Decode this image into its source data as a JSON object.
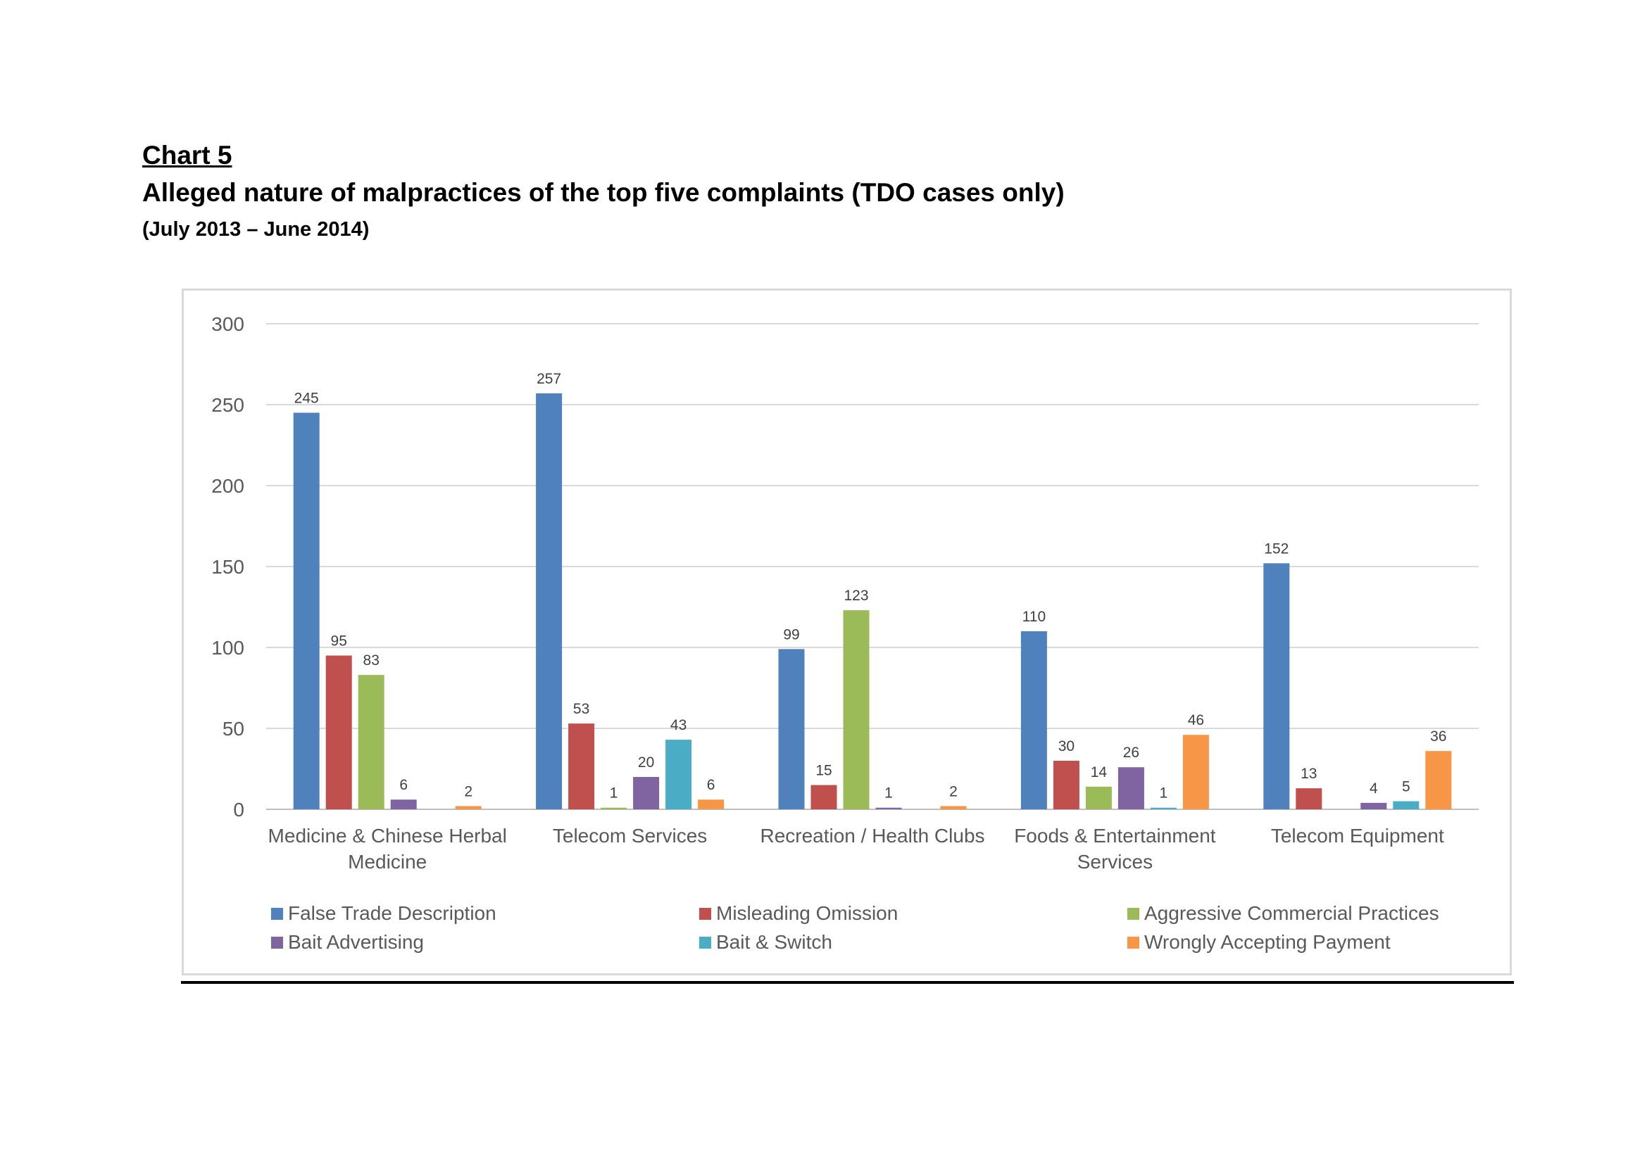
{
  "header": {
    "label": "Chart 5",
    "title": "Alleged nature of malpractices of the top five complaints (TDO cases only)",
    "subtitle": "(July 2013 – June 2014)"
  },
  "chart_data": {
    "type": "bar",
    "categories": [
      [
        "Medicine & Chinese Herbal",
        "Medicine"
      ],
      [
        "Telecom Services"
      ],
      [
        "Recreation / Health Clubs"
      ],
      [
        "Foods & Entertainment",
        "Services"
      ],
      [
        "Telecom Equipment"
      ]
    ],
    "series": [
      {
        "name": "False Trade Description",
        "color": "#4f81bd",
        "values": [
          245,
          257,
          99,
          110,
          152
        ]
      },
      {
        "name": "Misleading Omission",
        "color": "#c0504d",
        "values": [
          95,
          53,
          15,
          30,
          13
        ]
      },
      {
        "name": "Aggressive Commercial Practices",
        "color": "#9bbb59",
        "values": [
          83,
          1,
          123,
          14,
          null
        ]
      },
      {
        "name": "Bait Advertising",
        "color": "#8064a2",
        "values": [
          6,
          20,
          1,
          26,
          4
        ]
      },
      {
        "name": "Bait & Switch",
        "color": "#4bacc6",
        "values": [
          null,
          43,
          null,
          1,
          5
        ]
      },
      {
        "name": "Wrongly Accepting Payment",
        "color": "#f79646",
        "values": [
          2,
          6,
          2,
          46,
          36
        ]
      }
    ],
    "ylim": [
      0,
      300
    ],
    "yticks": [
      0,
      50,
      100,
      150,
      200,
      250,
      300
    ],
    "grid": true,
    "legend_position": "bottom",
    "xlabel": "",
    "ylabel": ""
  }
}
